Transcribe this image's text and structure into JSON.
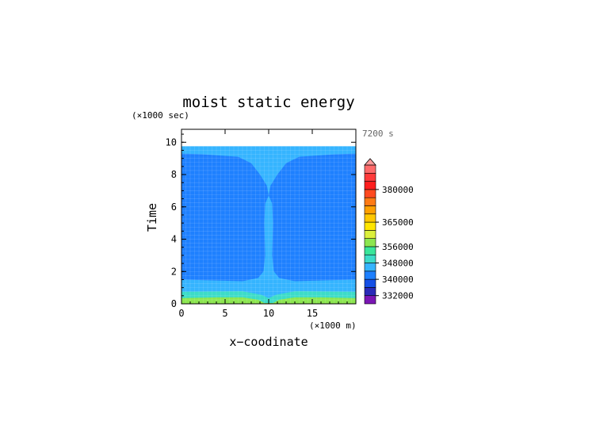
{
  "chart_data": {
    "type": "heatmap",
    "title": "moist static energy",
    "xlabel": "x−coodinate",
    "ylabel": "Time",
    "x_unit": "(×1000 m)",
    "y_unit": "(×1000 sec)",
    "time_label": "7200 s",
    "xlim": [
      0,
      20
    ],
    "ylim": [
      0,
      10.8
    ],
    "x_ticks": [
      "0",
      "5",
      "10",
      "15"
    ],
    "y_ticks": [
      "0",
      "2",
      "4",
      "6",
      "8",
      "10"
    ],
    "colorbar": {
      "labels": [
        "332000",
        "340000",
        "348000",
        "356000",
        "365000",
        "380000"
      ],
      "colors": [
        "#7a16b4",
        "#2a2ab8",
        "#1550e6",
        "#1e80ff",
        "#35b4ff",
        "#3cdcc8",
        "#39e69a",
        "#8ce650",
        "#dcf03c",
        "#ffe600",
        "#ffc800",
        "#ffa000",
        "#ff7a14",
        "#ff4a20",
        "#ff1e1e",
        "#ff3a3a",
        "#ff6a6a"
      ],
      "extend_color": "#ff9a9a"
    },
    "regions": [
      {
        "level": "340000",
        "color": "#1e80ff",
        "desc": "background 1.5 to 9.3"
      },
      {
        "level": "344000",
        "color": "#35b4ff",
        "desc": "column and upper band"
      },
      {
        "level": "348000",
        "color": "#3cdcc8",
        "desc": "near surface"
      },
      {
        "level": "352000",
        "color": "#8ce650",
        "desc": "surface"
      }
    ]
  }
}
